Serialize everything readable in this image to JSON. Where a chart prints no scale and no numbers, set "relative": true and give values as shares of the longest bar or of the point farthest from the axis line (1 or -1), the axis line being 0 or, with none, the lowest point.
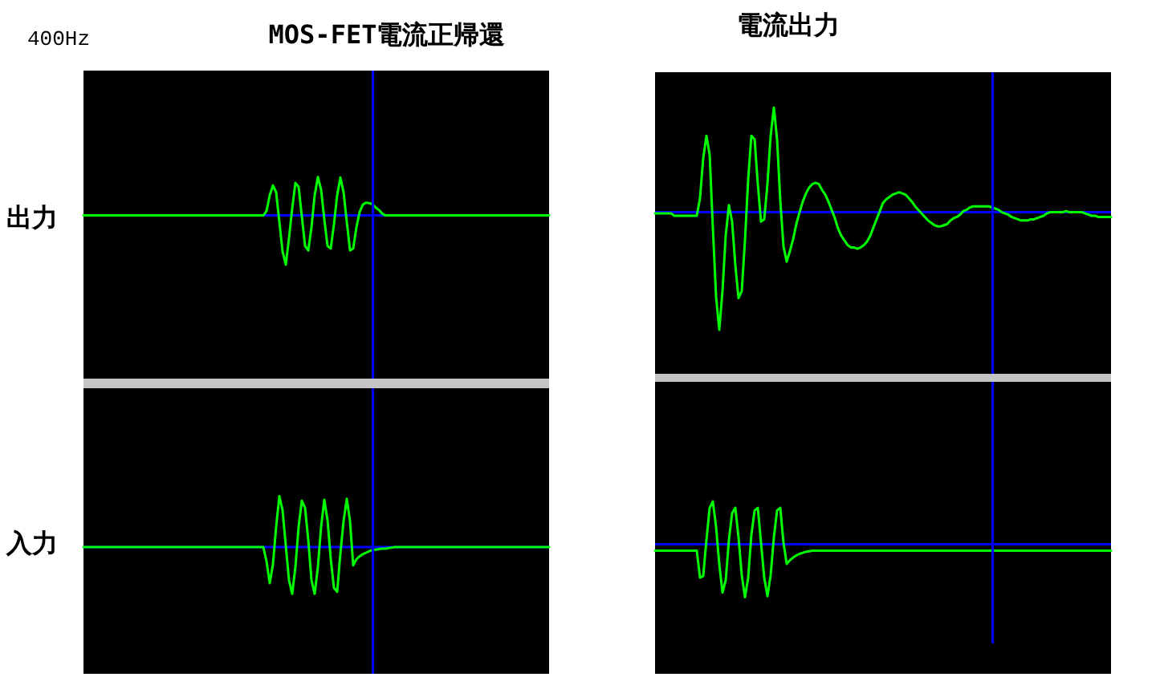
{
  "chart_data": [
    {
      "type": "line",
      "title": "MOS-FET電流正帰還",
      "ylabel": "出力",
      "annotations": [
        "400Hz"
      ],
      "relative": true,
      "color": "#00ff00",
      "categories": [
        null,
        null,
        null,
        null,
        null,
        null,
        null,
        null,
        null,
        null,
        null,
        null,
        null,
        null,
        null,
        null,
        null,
        null,
        null,
        null,
        null,
        null,
        null,
        null,
        null,
        null,
        null,
        null,
        null,
        null,
        null,
        null,
        null,
        null,
        null,
        null,
        null,
        null,
        null,
        null,
        null,
        null,
        null,
        null,
        null,
        null,
        null,
        null,
        null,
        null,
        null,
        null,
        null,
        null,
        null,
        null,
        null,
        null,
        null,
        null,
        null,
        null,
        null,
        null,
        null,
        null,
        null,
        null,
        null,
        null,
        null,
        null,
        null,
        null,
        null,
        null,
        null,
        null,
        null,
        null,
        null,
        null,
        null,
        null,
        null,
        null,
        null,
        null,
        null,
        null,
        null,
        null,
        null,
        null,
        null,
        null,
        null,
        null,
        null,
        null,
        null,
        null,
        null,
        null,
        null,
        null,
        null,
        null,
        null,
        null,
        null,
        null,
        null,
        null,
        null,
        null,
        null,
        null,
        null,
        null,
        null,
        null,
        null,
        null,
        null,
        null,
        null,
        null,
        null,
        null,
        null,
        null,
        null,
        null,
        null,
        null,
        null,
        null,
        null,
        null,
        null,
        null,
        null,
        null,
        null,
        null
      ],
      "values": [
        0,
        0,
        0,
        0,
        0,
        0,
        0,
        0,
        0,
        0,
        0,
        0,
        0,
        0,
        0,
        0,
        0,
        0,
        0,
        0,
        0,
        0,
        0,
        0,
        0,
        0,
        0,
        0,
        0,
        0,
        0,
        0,
        0,
        0,
        0,
        0,
        0,
        0,
        0,
        0,
        0,
        0,
        0,
        0,
        0,
        0,
        0,
        0,
        0,
        0,
        0,
        0,
        0,
        0,
        0,
        0,
        0,
        0.09,
        0.41,
        0.61,
        0.47,
        -0.13,
        -0.73,
        -1,
        -0.46,
        0.14,
        0.66,
        0.58,
        -0.02,
        -0.62,
        -0.71,
        -0.24,
        0.41,
        0.78,
        0.52,
        -0.08,
        -0.62,
        -0.67,
        -0.18,
        0.41,
        0.77,
        0.47,
        -0.13,
        -0.71,
        -0.67,
        -0.24,
        0.07,
        0.22,
        0.26,
        0.25,
        0.23,
        0.16,
        0.11,
        0.04,
        0,
        0,
        0,
        0,
        0,
        0,
        0,
        0,
        0,
        0,
        0,
        0,
        0,
        0,
        0,
        0,
        0,
        0,
        0,
        0,
        0,
        0,
        0,
        0,
        0,
        0,
        0,
        0,
        0,
        0,
        0,
        0,
        0,
        0,
        0,
        0,
        0,
        0,
        0,
        0,
        0,
        0,
        0,
        0,
        0,
        0,
        0,
        0,
        0,
        0,
        0,
        0
      ],
      "ref_lines": [
        {
          "axis": "y",
          "value": 0,
          "color": "#0000ff"
        }
      ]
    },
    {
      "type": "line",
      "title": "電流出力",
      "relative": true,
      "color": "#00ff00",
      "categories": [
        null,
        null,
        null,
        null,
        null,
        null,
        null,
        null,
        null,
        null,
        null,
        null,
        null,
        null,
        null,
        null,
        null,
        null,
        null,
        null,
        null,
        null,
        null,
        null,
        null,
        null,
        null,
        null,
        null,
        null,
        null,
        null,
        null,
        null,
        null,
        null,
        null,
        null,
        null,
        null,
        null,
        null,
        null,
        null,
        null,
        null,
        null,
        null,
        null,
        null,
        null,
        null,
        null,
        null,
        null,
        null,
        null,
        null,
        null,
        null,
        null,
        null,
        null,
        null,
        null,
        null,
        null,
        null,
        null,
        null,
        null,
        null,
        null,
        null,
        null,
        null,
        null,
        null,
        null,
        null,
        null,
        null,
        null,
        null,
        null,
        null,
        null,
        null,
        null,
        null,
        null,
        null,
        null,
        null,
        null,
        null,
        null,
        null,
        null,
        null,
        null,
        null,
        null,
        null,
        null,
        null,
        null,
        null,
        null,
        null,
        null,
        null,
        null,
        null,
        null,
        null,
        null,
        null,
        null,
        null,
        null,
        null,
        null,
        null,
        null,
        null,
        null,
        null,
        null,
        null,
        null,
        null,
        null,
        null,
        null,
        null,
        null,
        null,
        null,
        null,
        null,
        null,
        null
      ],
      "values": [
        -0.01,
        -0.01,
        -0.01,
        -0.01,
        -0.01,
        -0.01,
        -0.03,
        -0.03,
        -0.03,
        -0.03,
        -0.03,
        -0.03,
        -0.03,
        -0.03,
        0.12,
        0.46,
        0.65,
        0.49,
        -0.13,
        -0.72,
        -1,
        -0.67,
        -0.2,
        0.06,
        -0.08,
        -0.45,
        -0.73,
        -0.67,
        -0.24,
        0.28,
        0.65,
        0.62,
        0.24,
        -0.08,
        -0.06,
        0.24,
        0.65,
        0.89,
        0.62,
        0.1,
        -0.29,
        -0.42,
        -0.33,
        -0.23,
        -0.1,
        0,
        0.09,
        0.16,
        0.21,
        0.24,
        0.25,
        0.24,
        0.19,
        0.15,
        0.09,
        0.02,
        -0.05,
        -0.14,
        -0.2,
        -0.24,
        -0.28,
        -0.3,
        -0.3,
        -0.31,
        -0.3,
        -0.28,
        -0.25,
        -0.2,
        -0.13,
        -0.06,
        0.01,
        0.08,
        0.11,
        0.13,
        0.15,
        0.16,
        0.17,
        0.16,
        0.15,
        0.12,
        0.09,
        0.05,
        0.02,
        -0.01,
        -0.04,
        -0.07,
        -0.09,
        -0.11,
        -0.12,
        -0.12,
        -0.11,
        -0.1,
        -0.07,
        -0.05,
        -0.04,
        -0.02,
        0.01,
        0.02,
        0.04,
        0.05,
        0.05,
        0.05,
        0.05,
        0.05,
        0.05,
        0.04,
        0.03,
        0.02,
        0,
        -0.01,
        -0.02,
        -0.04,
        -0.05,
        -0.06,
        -0.07,
        -0.07,
        -0.07,
        -0.06,
        -0.06,
        -0.05,
        -0.04,
        -0.03,
        -0.01,
        0,
        0,
        0,
        0,
        0,
        0.01,
        0,
        0,
        0,
        0,
        0,
        -0.01,
        -0.02,
        -0.03,
        -0.03,
        -0.04,
        -0.04,
        -0.04,
        -0.04,
        -0.04
      ],
      "ref_lines": [
        {
          "axis": "y",
          "value": 0,
          "color": "#0000ff"
        }
      ]
    },
    {
      "type": "line",
      "ylabel": "入力",
      "relative": true,
      "color": "#00ff00",
      "categories": [
        null,
        null,
        null,
        null,
        null,
        null,
        null,
        null,
        null,
        null,
        null,
        null,
        null,
        null,
        null,
        null,
        null,
        null,
        null,
        null,
        null,
        null,
        null,
        null,
        null,
        null,
        null,
        null,
        null,
        null,
        null,
        null,
        null,
        null,
        null,
        null,
        null,
        null,
        null,
        null,
        null,
        null,
        null,
        null,
        null,
        null,
        null,
        null,
        null,
        null,
        null,
        null,
        null,
        null,
        null,
        null,
        null,
        null,
        null,
        null,
        null,
        null,
        null,
        null,
        null,
        null,
        null,
        null,
        null,
        null,
        null,
        null,
        null,
        null,
        null,
        null,
        null,
        null,
        null,
        null,
        null,
        null,
        null,
        null,
        null,
        null,
        null,
        null,
        null,
        null,
        null,
        null,
        null,
        null,
        null,
        null,
        null,
        null,
        null,
        null,
        null,
        null,
        null,
        null,
        null,
        null,
        null,
        null,
        null,
        null,
        null,
        null,
        null,
        null,
        null,
        null,
        null,
        null,
        null,
        null,
        null,
        null,
        null,
        null,
        null,
        null,
        null,
        null,
        null,
        null,
        null,
        null,
        null,
        null,
        null,
        null,
        null,
        null,
        null,
        null,
        null,
        null,
        null,
        null,
        null,
        null
      ],
      "values": [
        0,
        0,
        0,
        0,
        0,
        0,
        0,
        0,
        0,
        0,
        0,
        0,
        0,
        0,
        0,
        0,
        0,
        0,
        0,
        0,
        0,
        0,
        0,
        0,
        0,
        0,
        0,
        0,
        0,
        0,
        0,
        0,
        0,
        0,
        0,
        0,
        0,
        0,
        0,
        0,
        0,
        0,
        0,
        0,
        0,
        0,
        0,
        0,
        0,
        0,
        0,
        0,
        0,
        0,
        0,
        0,
        0,
        -0.28,
        -0.71,
        -0.34,
        0.4,
        1,
        0.72,
        0.03,
        -0.65,
        -0.92,
        -0.39,
        0.4,
        0.91,
        0.77,
        0.14,
        -0.65,
        -0.92,
        -0.39,
        0.4,
        0.93,
        0.53,
        -0.23,
        -0.8,
        -0.88,
        -0.13,
        0.51,
        0.95,
        0.51,
        -0.36,
        -0.24,
        -0.18,
        -0.14,
        -0.11,
        -0.08,
        -0.06,
        -0.05,
        -0.04,
        -0.03,
        -0.03,
        -0.02,
        -0.01,
        0,
        0,
        0,
        0,
        0,
        0,
        0,
        0,
        0,
        0,
        0,
        0,
        0,
        0,
        0,
        0,
        0,
        0,
        0,
        0,
        0,
        0,
        0,
        0,
        0,
        0,
        0,
        0,
        0,
        0,
        0,
        0,
        0,
        0,
        0,
        0,
        0,
        0,
        0,
        0,
        0,
        0,
        0,
        0,
        0,
        0,
        0,
        0,
        0
      ],
      "ref_lines": [
        {
          "axis": "y",
          "value": 0,
          "color": "#0000ff"
        }
      ]
    },
    {
      "type": "line",
      "relative": true,
      "color": "#00ff00",
      "categories": [
        null,
        null,
        null,
        null,
        null,
        null,
        null,
        null,
        null,
        null,
        null,
        null,
        null,
        null,
        null,
        null,
        null,
        null,
        null,
        null,
        null,
        null,
        null,
        null,
        null,
        null,
        null,
        null,
        null,
        null,
        null,
        null,
        null,
        null,
        null,
        null,
        null,
        null,
        null,
        null,
        null,
        null,
        null,
        null,
        null,
        null,
        null,
        null,
        null,
        null,
        null,
        null,
        null,
        null,
        null,
        null,
        null,
        null,
        null,
        null,
        null,
        null,
        null,
        null,
        null,
        null,
        null,
        null,
        null,
        null,
        null,
        null,
        null,
        null,
        null,
        null,
        null,
        null,
        null,
        null,
        null,
        null,
        null,
        null,
        null,
        null,
        null,
        null,
        null,
        null,
        null,
        null,
        null,
        null,
        null,
        null,
        null,
        null,
        null,
        null,
        null,
        null,
        null,
        null,
        null,
        null,
        null,
        null,
        null,
        null,
        null,
        null,
        null,
        null,
        null,
        null,
        null,
        null,
        null,
        null,
        null,
        null,
        null,
        null,
        null,
        null,
        null,
        null,
        null,
        null,
        null,
        null,
        null,
        null,
        null,
        null,
        null,
        null,
        null,
        null,
        null,
        null,
        null
      ],
      "values": [
        -0.12,
        -0.12,
        -0.12,
        -0.12,
        -0.12,
        -0.12,
        -0.12,
        -0.12,
        -0.12,
        -0.12,
        -0.12,
        -0.12,
        -0.12,
        -0.12,
        -0.63,
        -0.6,
        0.08,
        0.69,
        0.81,
        0.33,
        -0.37,
        -0.91,
        -0.68,
        0.08,
        0.59,
        0.69,
        0.13,
        -0.58,
        -1,
        -0.63,
        0.18,
        0.64,
        0.69,
        0.03,
        -0.63,
        -0.98,
        -0.58,
        0.13,
        0.64,
        0.69,
        0.03,
        -0.37,
        -0.3,
        -0.25,
        -0.21,
        -0.18,
        -0.16,
        -0.14,
        -0.13,
        -0.12,
        -0.12,
        -0.12,
        -0.12,
        -0.12,
        -0.12,
        -0.12,
        -0.12,
        -0.12,
        -0.12,
        -0.12,
        -0.12,
        -0.12,
        -0.12,
        -0.12,
        -0.12,
        -0.12,
        -0.12,
        -0.12,
        -0.12,
        -0.12,
        -0.12,
        -0.12,
        -0.12,
        -0.12,
        -0.12,
        -0.12,
        -0.12,
        -0.12,
        -0.12,
        -0.12,
        -0.12,
        -0.12,
        -0.12,
        -0.12,
        -0.12,
        -0.12,
        -0.12,
        -0.12,
        -0.12,
        -0.12,
        -0.12,
        -0.12,
        -0.12,
        -0.12,
        -0.12,
        -0.12,
        -0.12,
        -0.12,
        -0.12,
        -0.12,
        -0.12,
        -0.12,
        -0.12,
        -0.12,
        -0.12,
        -0.12,
        -0.12,
        -0.12,
        -0.12,
        -0.12,
        -0.12,
        -0.12,
        -0.12,
        -0.12,
        -0.12,
        -0.12,
        -0.12,
        -0.12,
        -0.12,
        -0.12,
        -0.12,
        -0.12,
        -0.12,
        -0.12,
        -0.12,
        -0.12,
        -0.12,
        -0.12,
        -0.12,
        -0.12,
        -0.12,
        -0.12,
        -0.12,
        -0.12,
        -0.12,
        -0.12,
        -0.12,
        -0.12,
        -0.12,
        -0.12,
        -0.12,
        -0.12,
        -0.12
      ],
      "ref_lines": [
        {
          "axis": "y",
          "value": 0,
          "color": "#0000ff"
        }
      ]
    }
  ]
}
